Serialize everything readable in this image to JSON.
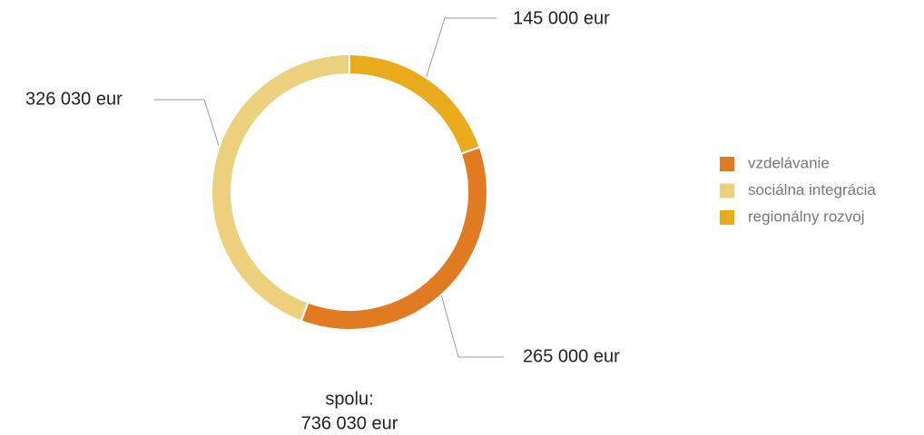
{
  "chart_data": {
    "type": "pie",
    "categories": [
      "vzdelávanie",
      "sociálna integrácia",
      "regionálny rozvoj"
    ],
    "values": [
      265000,
      326030,
      145000
    ],
    "value_labels": [
      "265 000 eur",
      "326 030 eur",
      "145 000 eur"
    ],
    "colors": [
      "#e07b22",
      "#ecd07e",
      "#e9aa1c"
    ],
    "donut": true,
    "total": {
      "label": "spolu:",
      "value": 736030,
      "value_label": "736 030 eur"
    }
  }
}
